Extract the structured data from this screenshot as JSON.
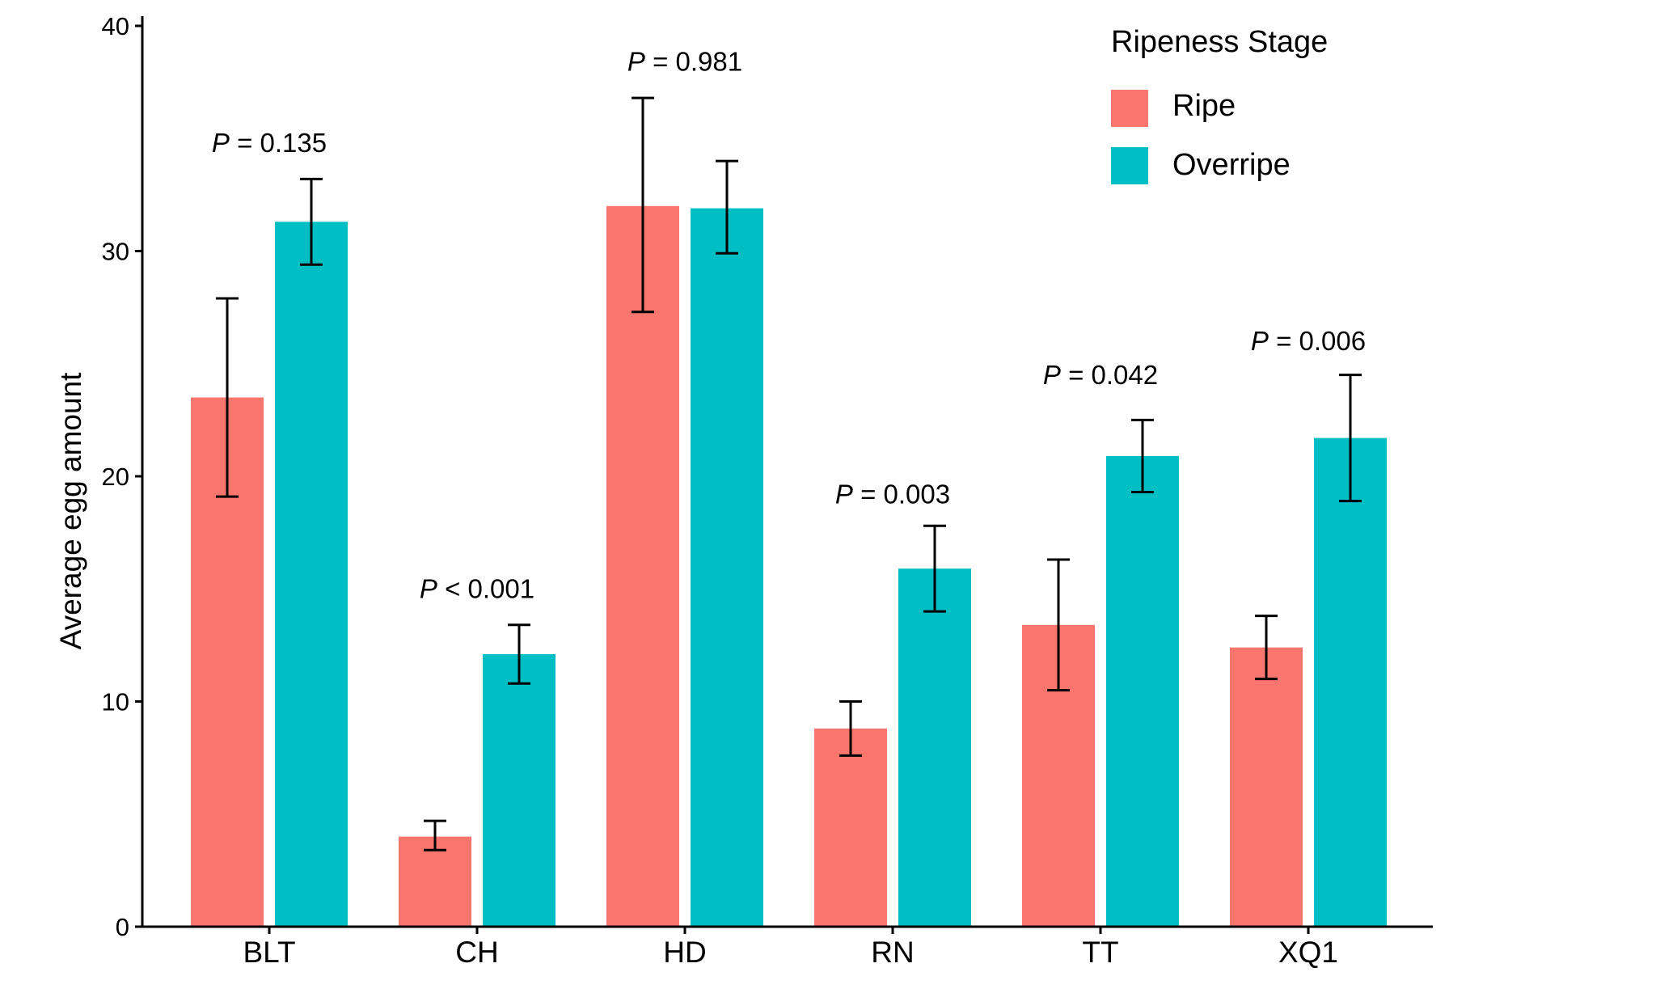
{
  "chart_data": {
    "type": "bar",
    "categories": [
      "BLT",
      "CH",
      "HD",
      "RN",
      "TT",
      "XQ1"
    ],
    "series": [
      {
        "name": "Ripe",
        "color": "#F8766D",
        "values": [
          23.5,
          4.0,
          32.0,
          8.8,
          13.4,
          12.4
        ],
        "error_low": [
          19.1,
          3.4,
          27.3,
          7.6,
          10.5,
          11.0
        ],
        "error_high": [
          27.9,
          4.7,
          36.8,
          10.0,
          16.3,
          13.8
        ]
      },
      {
        "name": "Overripe",
        "color": "#00BFC4",
        "values": [
          31.3,
          12.1,
          31.9,
          15.9,
          20.9,
          21.7
        ],
        "error_low": [
          29.4,
          10.8,
          29.9,
          14.0,
          19.3,
          18.9
        ],
        "error_high": [
          33.2,
          13.4,
          34.0,
          17.8,
          22.5,
          24.5
        ]
      }
    ],
    "p_values": [
      {
        "prefix": "P",
        "rest": " = 0.135",
        "y": 34.4
      },
      {
        "prefix": "P",
        "rest": " < 0.001",
        "y": 14.6
      },
      {
        "prefix": "P",
        "rest": " = 0.981",
        "y": 38.0
      },
      {
        "prefix": "P",
        "rest": " = 0.003",
        "y": 18.8
      },
      {
        "prefix": "P",
        "rest": " = 0.042",
        "y": 24.1
      },
      {
        "prefix": "P",
        "rest": " = 0.006",
        "y": 25.6
      }
    ],
    "ylabel": "Average egg amount",
    "xlabel": "",
    "ylim": [
      0,
      40
    ],
    "yticks": [
      0,
      10,
      20,
      30,
      40
    ],
    "grid": false,
    "legend": {
      "title": "Ripeness Stage",
      "placement": "top-right"
    }
  }
}
